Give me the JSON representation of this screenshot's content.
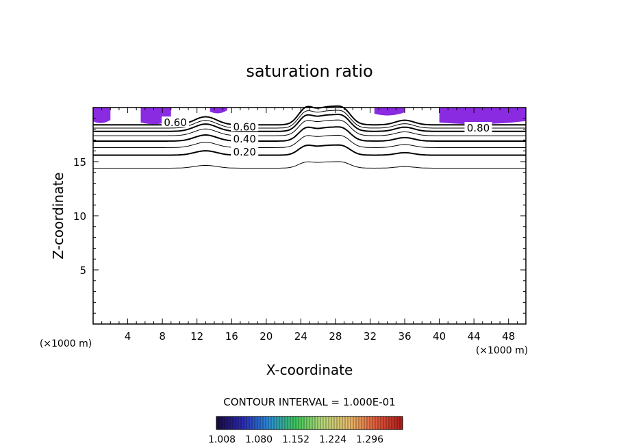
{
  "chart_data": {
    "type": "contour",
    "title": "saturation ratio",
    "xlabel": "X-coordinate",
    "ylabel": "Z-coordinate",
    "x_unit": "(×1000 m)",
    "y_unit": "(×1000 m)",
    "xlim": [
      0,
      50
    ],
    "ylim": [
      0,
      20
    ],
    "x_ticks": [
      4,
      8,
      12,
      16,
      20,
      24,
      28,
      32,
      36,
      40,
      44,
      48
    ],
    "y_ticks": [
      5,
      10,
      15
    ],
    "contour_interval_text": "CONTOUR INTERVAL = 1.000E-01",
    "contour_labels": [
      {
        "text": "0.20",
        "x": 17.5,
        "z": 15.9
      },
      {
        "text": "0.40",
        "x": 17.5,
        "z": 17.1
      },
      {
        "text": "0.60",
        "x": 17.5,
        "z": 18.2
      },
      {
        "text": "0.60",
        "x": 9.5,
        "z": 18.6
      },
      {
        "text": "0.80",
        "x": 44.5,
        "z": 18.1
      }
    ],
    "contour_lines": [
      {
        "level": 0.1,
        "z": 14.4,
        "bold": false
      },
      {
        "level": 0.2,
        "z": 15.6,
        "bold": true
      },
      {
        "level": 0.3,
        "z": 16.3,
        "bold": false
      },
      {
        "level": 0.4,
        "z": 16.9,
        "bold": true
      },
      {
        "level": 0.5,
        "z": 17.4,
        "bold": false
      },
      {
        "level": 0.6,
        "z": 17.8,
        "bold": true
      },
      {
        "level": 0.7,
        "z": 18.1,
        "bold": false
      },
      {
        "level": 0.8,
        "z": 18.4,
        "bold": true
      }
    ],
    "supersaturated_regions": [
      {
        "x": [
          0,
          2
        ],
        "z": [
          18.6,
          20
        ]
      },
      {
        "x": [
          5.5,
          9
        ],
        "z": [
          18.5,
          20
        ]
      },
      {
        "x": [
          13.5,
          15.5
        ],
        "z": [
          19.5,
          20
        ]
      },
      {
        "x": [
          32.5,
          36
        ],
        "z": [
          19.3,
          20
        ]
      },
      {
        "x": [
          40,
          50
        ],
        "z": [
          18.5,
          20
        ]
      }
    ],
    "colorbar": {
      "ticks": [
        "1.008",
        "1.080",
        "1.152",
        "1.224",
        "1.296"
      ],
      "colors": [
        "#1a0a3c",
        "#2b2bb5",
        "#2a8fd6",
        "#3ec85a",
        "#b9d77a",
        "#e8b96a",
        "#e05a3a",
        "#b01a1a"
      ]
    },
    "fill_color": "#8a2be2",
    "grid": false
  }
}
